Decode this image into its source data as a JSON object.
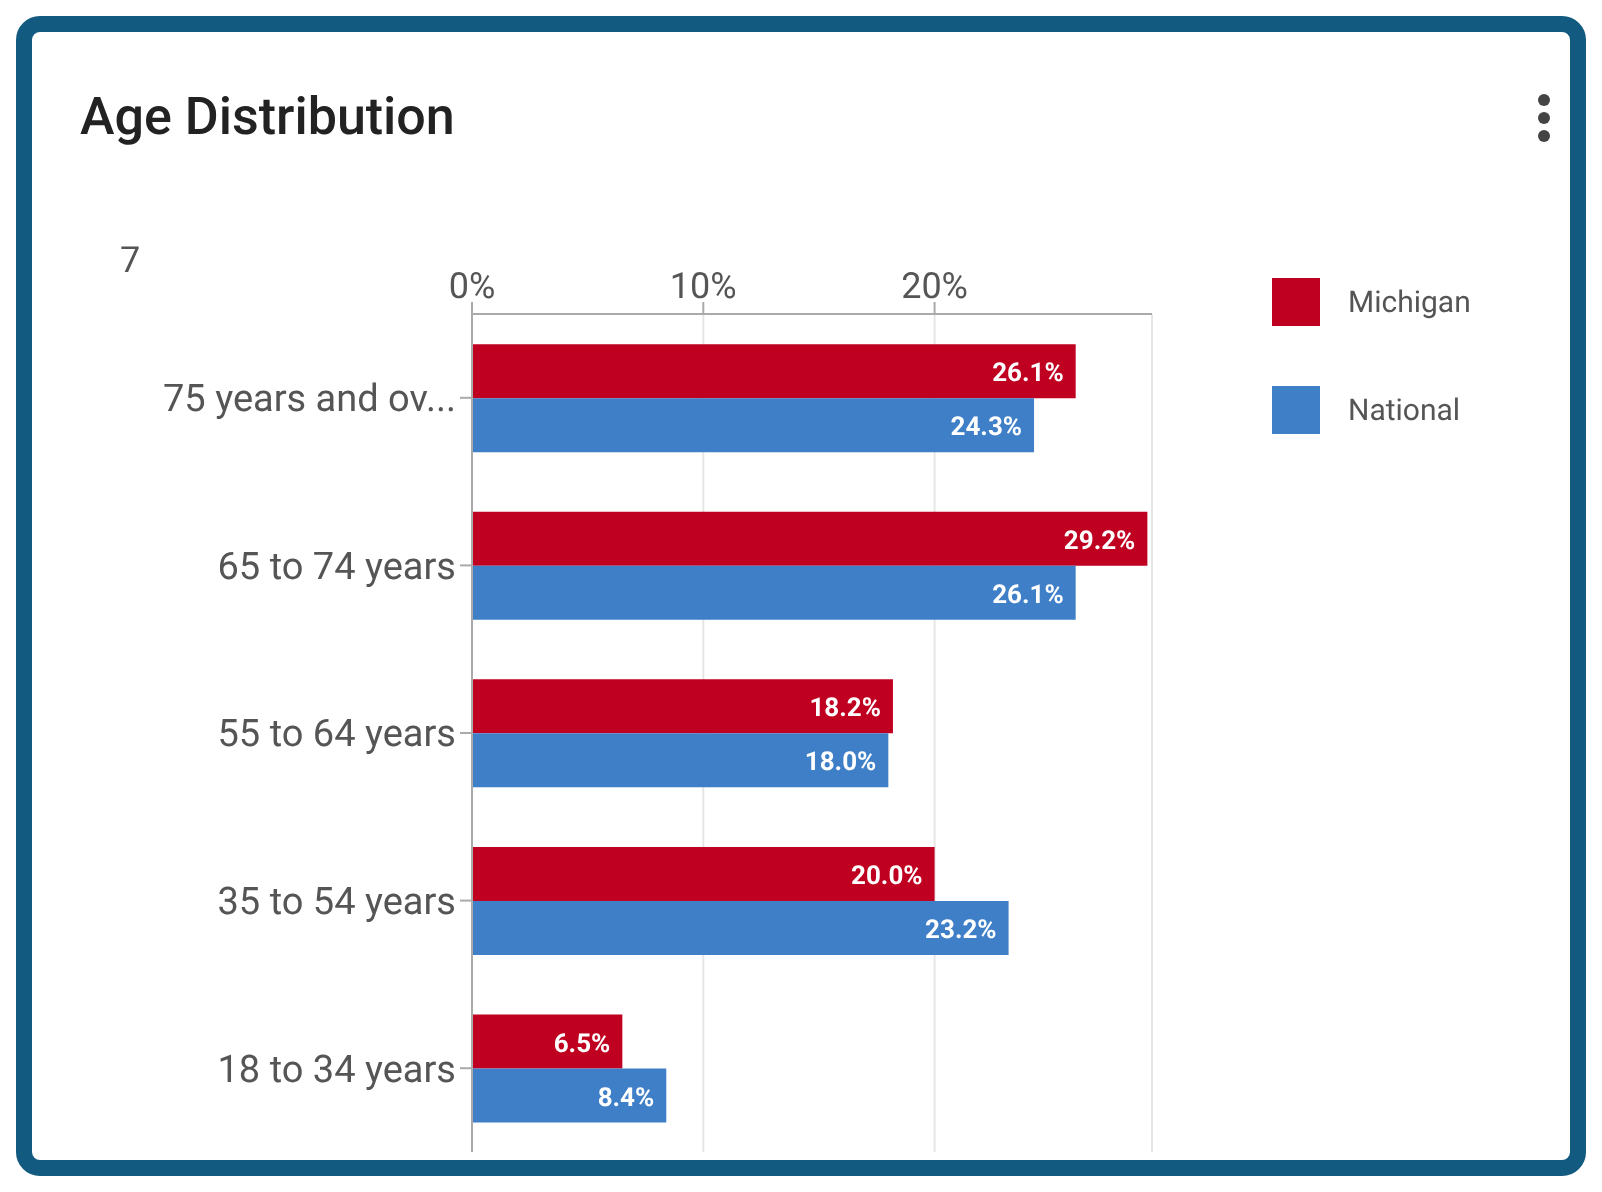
{
  "chart_data": {
    "type": "bar",
    "orientation": "horizontal",
    "title": "Age Distribution",
    "annotations": [
      "7"
    ],
    "categories": [
      "75 years and ov...",
      "65 to 74 years",
      "55 to 64 years",
      "35 to 54 years",
      "18 to 34 years"
    ],
    "series": [
      {
        "name": "Michigan",
        "color": "#c00020",
        "values": [
          26.1,
          29.2,
          18.2,
          20.0,
          6.5
        ],
        "value_labels": [
          "26.1%",
          "29.2%",
          "18.2%",
          "20.0%",
          "6.5%"
        ]
      },
      {
        "name": "National",
        "color": "#3f7fc8",
        "values": [
          24.3,
          26.1,
          18.0,
          23.2,
          8.4
        ],
        "value_labels": [
          "24.3%",
          "26.1%",
          "18.0%",
          "23.2%",
          "8.4%"
        ]
      }
    ],
    "xlim": [
      0,
      29.4
    ],
    "xticks": [
      {
        "value": 0,
        "label": "0%"
      },
      {
        "value": 10,
        "label": "10%"
      },
      {
        "value": 20,
        "label": "20%"
      }
    ],
    "grid": "x",
    "legend": "top right"
  }
}
